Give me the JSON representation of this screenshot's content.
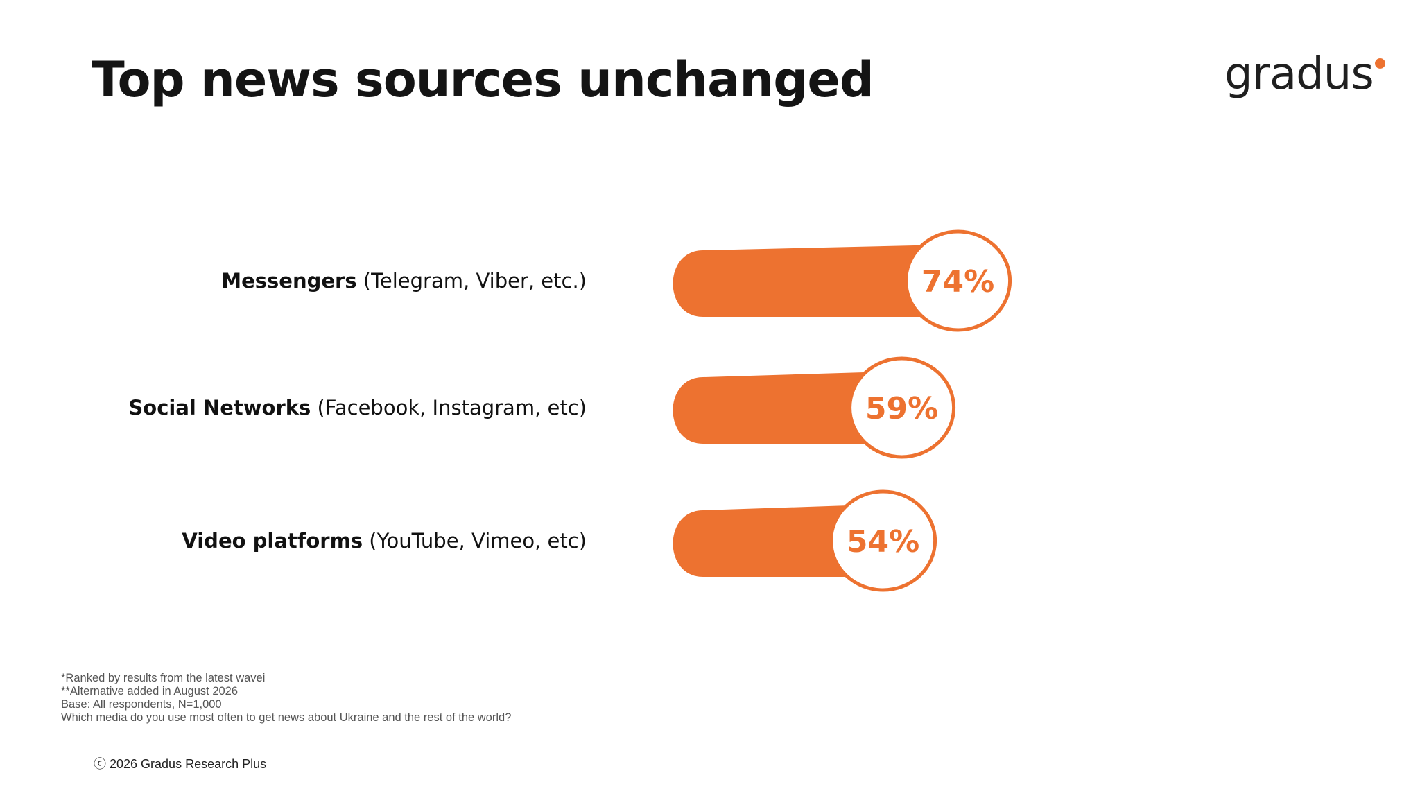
{
  "title": "Top news sources unchanged",
  "logo": {
    "text": "gradus",
    "dot_color": "#ED7230"
  },
  "chart_data": {
    "type": "bar",
    "orientation": "horizontal",
    "categories": [
      {
        "bold": "Messengers",
        "detail": "(Telegram, Viber, etc.)"
      },
      {
        "bold": "Social Networks",
        "detail": "(Facebook, Instagram, etc)"
      },
      {
        "bold": "Video platforms",
        "detail": "(YouTube, Vimeo, etc)"
      }
    ],
    "values": [
      74,
      59,
      54
    ],
    "value_labels": [
      "74%",
      "59%",
      "54%"
    ],
    "unit": "%",
    "bar_color": "#ED7230",
    "grid": false,
    "legend": false
  },
  "footnotes": [
    "*Ranked by results from the latest wavei",
    "**Alternative added in August 2026",
    "Base: All respondents, N=1,000",
    "Which media do you use most often to get news about Ukraine and the rest of the world?"
  ],
  "copyright": "ⓒ 2026 Gradus Research Plus"
}
